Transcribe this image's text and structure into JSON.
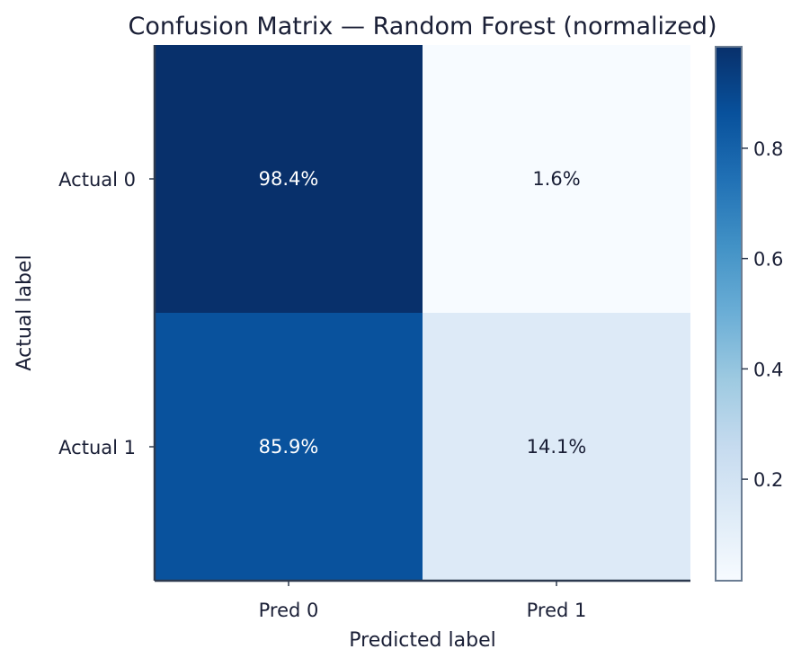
{
  "chart_data": {
    "type": "heatmap",
    "title": "Confusion Matrix — Random Forest (normalized)",
    "xlabel": "Predicted label",
    "ylabel": "Actual label",
    "x_categories": [
      "Pred 0",
      "Pred 1"
    ],
    "y_categories": [
      "Actual 0",
      "Actual 1"
    ],
    "values": [
      [
        0.984,
        0.016
      ],
      [
        0.859,
        0.141
      ]
    ],
    "cell_labels": [
      [
        "98.4%",
        "1.6%"
      ],
      [
        "85.9%",
        "14.1%"
      ]
    ],
    "colormap": "Blues",
    "colorbar": {
      "range": [
        0.016,
        0.984
      ],
      "ticks": [
        0.2,
        0.4,
        0.6,
        0.8
      ],
      "tick_labels": [
        "0.2",
        "0.4",
        "0.6",
        "0.8"
      ]
    },
    "grid": false
  },
  "colors": {
    "text_dark": "#1a1f36",
    "text_light": "#ffffff",
    "axis_spine": "#2d3a4f",
    "colorbar_border": "#6b7d93"
  }
}
